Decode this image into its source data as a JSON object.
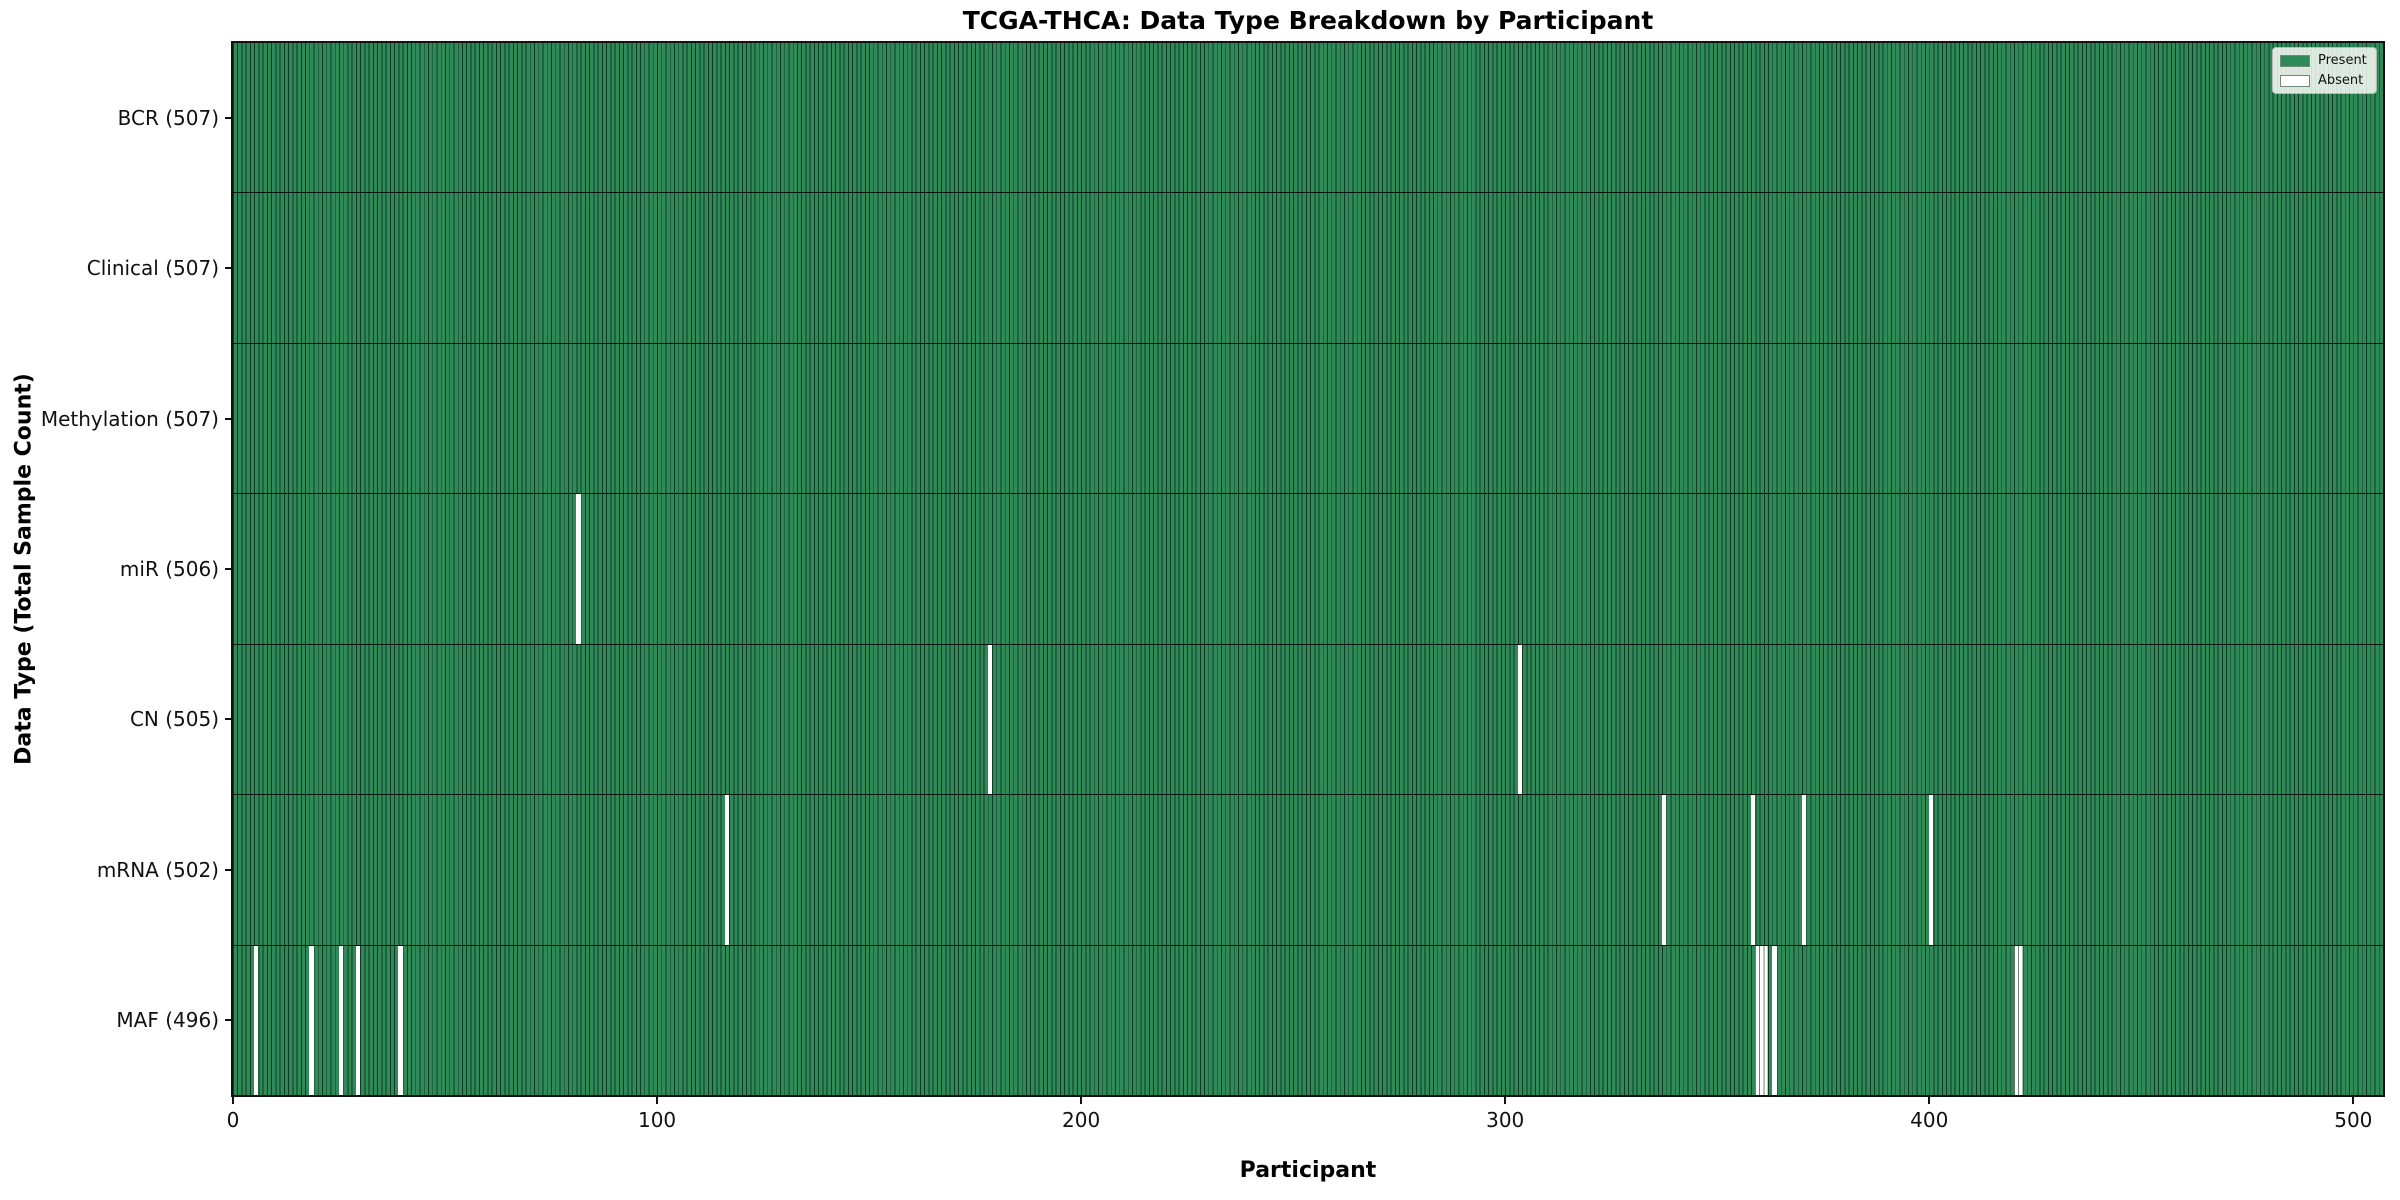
{
  "chart_data": {
    "type": "heatmap",
    "title": "TCGA-THCA: Data Type Breakdown by Participant",
    "xlabel": "Participant",
    "ylabel": "Data Type (Total Sample Count)",
    "n_participants": 507,
    "xlim": [
      0,
      507
    ],
    "x_ticks": [
      0,
      100,
      200,
      300,
      400,
      500
    ],
    "grid": false,
    "legend_position": "upper right",
    "legend": [
      {
        "label": "Present",
        "color": "#2e8b57"
      },
      {
        "label": "Absent",
        "color": "#ffffff"
      }
    ],
    "colors": {
      "present_fill": "#2e8b57",
      "bar_edge": "rgba(0,0,0,0.6)",
      "absent_fill": "#ffffff",
      "absent_edge": "rgba(165,165,165,0.55)",
      "spine": "#111111"
    },
    "rows": [
      {
        "label": "BCR (507)",
        "data_type": "BCR",
        "present_count": 507,
        "absent_participants": []
      },
      {
        "label": "Clinical (507)",
        "data_type": "Clinical",
        "present_count": 507,
        "absent_participants": []
      },
      {
        "label": "Methylation (507)",
        "data_type": "Methylation",
        "present_count": 507,
        "absent_participants": []
      },
      {
        "label": "miR (506)",
        "data_type": "miR",
        "present_count": 506,
        "absent_participants": [
          81
        ]
      },
      {
        "label": "CN (505)",
        "data_type": "CN",
        "present_count": 505,
        "absent_participants": [
          178,
          303
        ]
      },
      {
        "label": "mRNA (502)",
        "data_type": "mRNA",
        "present_count": 502,
        "absent_participants": [
          116,
          337,
          358,
          370,
          400
        ]
      },
      {
        "label": "MAF (496)",
        "data_type": "MAF",
        "present_count": 496,
        "absent_participants": [
          5,
          18,
          25,
          29,
          39,
          359,
          360,
          361,
          363,
          420,
          421
        ]
      }
    ]
  }
}
